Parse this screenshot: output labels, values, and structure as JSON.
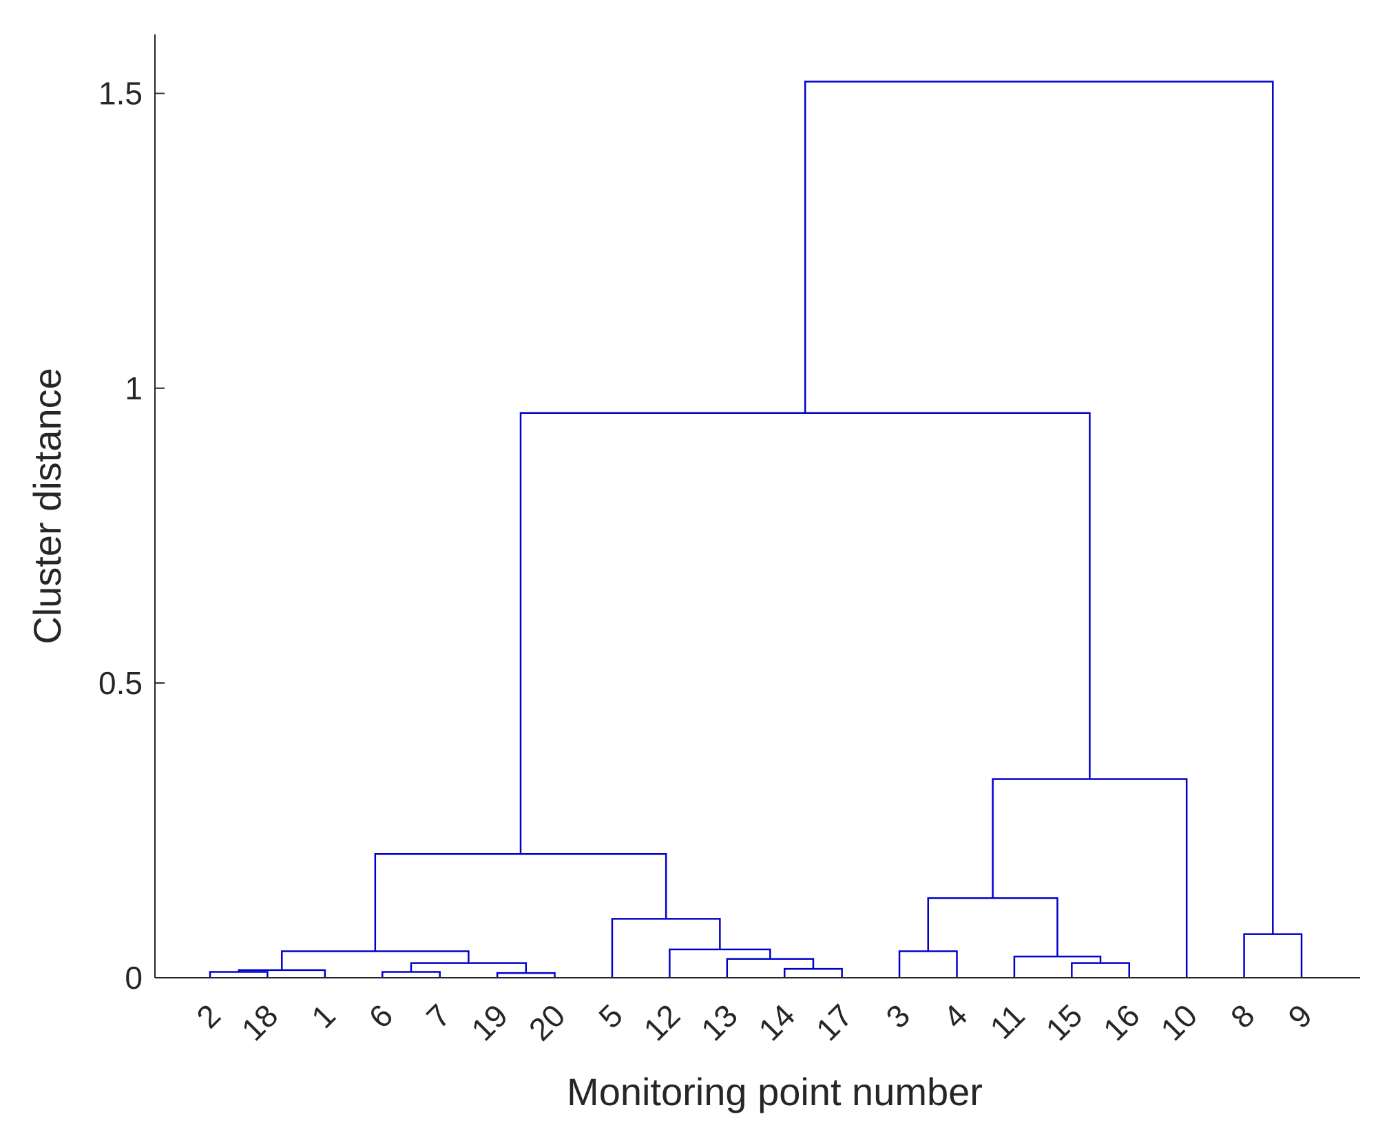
{
  "chart_data": {
    "type": "dendrogram",
    "xlabel": "Monitoring point number",
    "ylabel": "Cluster distance",
    "ylim": [
      0,
      1.6
    ],
    "yticks": [
      0,
      0.5,
      1,
      1.5
    ],
    "ytick_labels": [
      "0",
      "0.5",
      "1",
      "1.5"
    ],
    "leaf_order": [
      "2",
      "18",
      "1",
      "6",
      "7",
      "19",
      "20",
      "5",
      "12",
      "13",
      "14",
      "17",
      "3",
      "4",
      "11",
      "15",
      "16",
      "10",
      "8",
      "9"
    ],
    "link_color": "#0000cd",
    "merges": [
      {
        "left": [
          "2"
        ],
        "right": [
          "18"
        ],
        "distance": 0.01
      },
      {
        "left": [
          "2",
          "18"
        ],
        "right": [
          "1"
        ],
        "distance": 0.013
      },
      {
        "left": [
          "6"
        ],
        "right": [
          "7"
        ],
        "distance": 0.01
      },
      {
        "left": [
          "19"
        ],
        "right": [
          "20"
        ],
        "distance": 0.008
      },
      {
        "left": [
          "6",
          "7"
        ],
        "right": [
          "19",
          "20"
        ],
        "distance": 0.025
      },
      {
        "left": [
          "2",
          "18",
          "1"
        ],
        "right": [
          "6",
          "7",
          "19",
          "20"
        ],
        "distance": 0.045
      },
      {
        "left": [
          "14"
        ],
        "right": [
          "17"
        ],
        "distance": 0.015
      },
      {
        "left": [
          "13"
        ],
        "right": [
          "14",
          "17"
        ],
        "distance": 0.032
      },
      {
        "left": [
          "12"
        ],
        "right": [
          "13",
          "14",
          "17"
        ],
        "distance": 0.048
      },
      {
        "left": [
          "5"
        ],
        "right": [
          "12",
          "13",
          "14",
          "17"
        ],
        "distance": 0.1
      },
      {
        "left": [
          "2",
          "18",
          "1",
          "6",
          "7",
          "19",
          "20"
        ],
        "right": [
          "5",
          "12",
          "13",
          "14",
          "17"
        ],
        "distance": 0.21
      },
      {
        "left": [
          "3"
        ],
        "right": [
          "4"
        ],
        "distance": 0.045
      },
      {
        "left": [
          "15"
        ],
        "right": [
          "16"
        ],
        "distance": 0.025
      },
      {
        "left": [
          "11"
        ],
        "right": [
          "15",
          "16"
        ],
        "distance": 0.036
      },
      {
        "left": [
          "3",
          "4"
        ],
        "right": [
          "11",
          "15",
          "16"
        ],
        "distance": 0.135
      },
      {
        "left": [
          "3",
          "4",
          "11",
          "15",
          "16"
        ],
        "right": [
          "10"
        ],
        "distance": 0.337
      },
      {
        "left": [
          "2",
          "18",
          "1",
          "6",
          "7",
          "19",
          "20",
          "5",
          "12",
          "13",
          "14",
          "17"
        ],
        "right": [
          "3",
          "4",
          "11",
          "15",
          "16",
          "10"
        ],
        "distance": 0.958
      },
      {
        "left": [
          "8"
        ],
        "right": [
          "9"
        ],
        "distance": 0.074
      },
      {
        "left": [
          "2",
          "18",
          "1",
          "6",
          "7",
          "19",
          "20",
          "5",
          "12",
          "13",
          "14",
          "17",
          "3",
          "4",
          "11",
          "15",
          "16",
          "10"
        ],
        "right": [
          "8",
          "9"
        ],
        "distance": 1.52
      }
    ]
  }
}
